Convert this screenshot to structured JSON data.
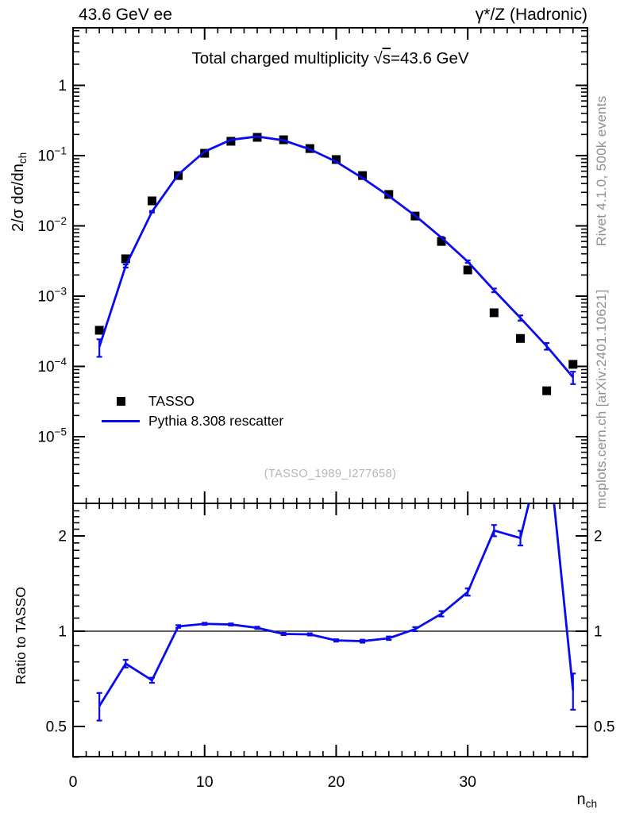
{
  "header": {
    "left": "43.6 GeV ee",
    "right": "γ*/Z (Hadronic)"
  },
  "main_panel": {
    "title_pre": "Total charged multiplicity ",
    "title_sqrt_arg": "s",
    "title_post": "=43.6 GeV",
    "ylabel_pre": "2/σ  dσ/dn",
    "ylabel_sub": "ch",
    "watermark": "(TASSO_1989_I277658)",
    "ytick_labels": [
      {
        "value": 1,
        "mantissa": "1",
        "exp": ""
      },
      {
        "value": 0.1,
        "mantissa": "10",
        "exp": "−1"
      },
      {
        "value": 0.01,
        "mantissa": "10",
        "exp": "−2"
      },
      {
        "value": 0.001,
        "mantissa": "10",
        "exp": "−3"
      },
      {
        "value": 0.0001,
        "mantissa": "10",
        "exp": "−4"
      },
      {
        "value": 1e-05,
        "mantissa": "10",
        "exp": "−5"
      }
    ]
  },
  "legend": {
    "items": [
      {
        "label": "TASSO",
        "marker": "square",
        "color": "#000000"
      },
      {
        "label": "Pythia 8.308 rescatter",
        "marker": "line",
        "color": "#0a0af0"
      }
    ]
  },
  "ratio_panel": {
    "ylabel": "Ratio to TASSO",
    "ytick_labels": [
      {
        "value": 0.5,
        "label": "0.5"
      },
      {
        "value": 1,
        "label": "1"
      },
      {
        "value": 2,
        "label": "2"
      }
    ]
  },
  "xaxis": {
    "label_base": "n",
    "label_sub": "ch",
    "tick_labels": [
      {
        "value": 0,
        "label": "0"
      },
      {
        "value": 10,
        "label": "10"
      },
      {
        "value": 20,
        "label": "20"
      },
      {
        "value": 30,
        "label": "30"
      }
    ]
  },
  "side_notes": {
    "top": "Rivet 4.1.0,  500k events",
    "bottom": "mcplots.cern.ch [arXiv:2401.10621]"
  },
  "colors": {
    "curve": "#0a0af0",
    "marker": "#000000",
    "axis": "#000000",
    "note": "#8f8f8f",
    "watermark": "#b5b5b5"
  },
  "chart_data": [
    {
      "type": "line",
      "panel": "main",
      "title": "Total charged multiplicity √s=43.6 GeV",
      "xlabel": "n_ch",
      "ylabel": "2/σ dσ/dn_ch",
      "x_range": [
        0,
        39.1
      ],
      "y_range_log": [
        1.1e-06,
        6.6
      ],
      "y_scale": "log",
      "grid": false,
      "legend_position": "left-middle",
      "x": [
        2,
        4,
        6,
        8,
        10,
        12,
        14,
        16,
        18,
        20,
        22,
        24,
        26,
        28,
        30,
        32,
        34,
        36,
        38
      ],
      "series": [
        {
          "name": "TASSO",
          "style": "markers",
          "color": "#000000",
          "values": [
            0.000327,
            0.0034,
            0.0227,
            0.052,
            0.108,
            0.16,
            0.182,
            0.168,
            0.126,
            0.088,
            0.052,
            0.028,
            0.0138,
            0.006,
            0.00236,
            0.00058,
            0.00025,
            4.5e-05,
            0.000107
          ]
        },
        {
          "name": "Pythia 8.308 rescatter",
          "style": "line+errors",
          "color": "#0a0af0",
          "values": [
            0.00019,
            0.00269,
            0.0159,
            0.054,
            0.114,
            0.168,
            0.187,
            0.165,
            0.123,
            0.082,
            0.048,
            0.0266,
            0.014,
            0.0068,
            0.0031,
            0.00121,
            0.00049,
            0.000194,
            7e-05
          ],
          "err_frac": [
            0.28,
            0.05,
            0.025,
            0.018,
            0.012,
            0.01,
            0.01,
            0.01,
            0.01,
            0.012,
            0.014,
            0.016,
            0.02,
            0.026,
            0.04,
            0.06,
            0.085,
            0.11,
            0.2
          ]
        }
      ]
    },
    {
      "type": "line",
      "panel": "ratio",
      "ylabel": "Ratio to TASSO",
      "y_range_log": [
        0.4,
        2.52
      ],
      "y_scale": "log",
      "refline": 1,
      "x": [
        2,
        4,
        6,
        8,
        10,
        12,
        14,
        16,
        18,
        20,
        22,
        24,
        26,
        28,
        30,
        32,
        34,
        36,
        38
      ],
      "values": [
        0.58,
        0.79,
        0.7,
        1.035,
        1.055,
        1.05,
        1.025,
        0.98,
        0.977,
        0.935,
        0.93,
        0.95,
        1.015,
        1.135,
        1.33,
        2.08,
        1.97,
        4.3,
        0.65
      ],
      "err": [
        0.058,
        0.022,
        0.013,
        0.01,
        0.008,
        0.008,
        0.008,
        0.008,
        0.008,
        0.008,
        0.01,
        0.012,
        0.015,
        0.022,
        0.035,
        0.085,
        0.105,
        1.0,
        0.085
      ]
    }
  ]
}
